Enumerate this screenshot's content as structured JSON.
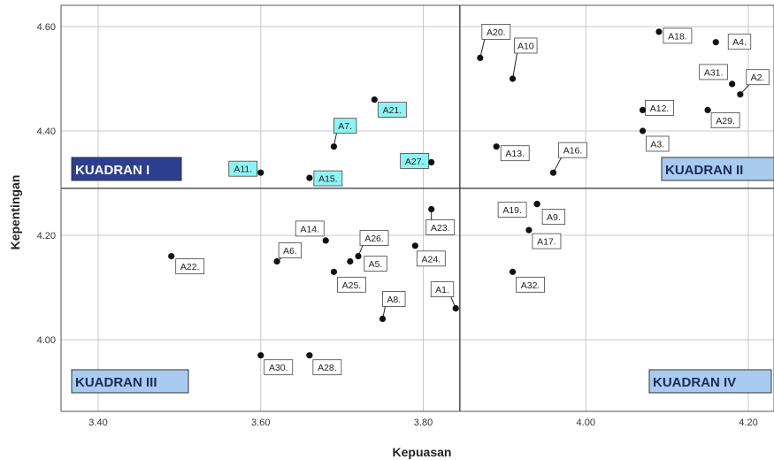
{
  "chart_data": {
    "type": "scatter",
    "xlabel": "Kepuasan",
    "ylabel": "Kepentingan",
    "xlim": [
      3.365,
      4.225
    ],
    "ylim": [
      3.863,
      4.646
    ],
    "xticks": [
      "3.40",
      "3.60",
      "3.80",
      "4.00",
      "4.20"
    ],
    "yticks": [
      "4.00",
      "4.20",
      "4.40",
      "4.60"
    ],
    "grid": true,
    "reference_lines": {
      "x": 3.845,
      "y": 4.29
    },
    "quadrants": [
      {
        "label": "KUADRAN I",
        "position": "top-left"
      },
      {
        "label": "KUADRAN II",
        "position": "top-right"
      },
      {
        "label": "KUADRAN III",
        "position": "bottom-left"
      },
      {
        "label": "KUADRAN IV",
        "position": "bottom-right"
      }
    ],
    "points": [
      {
        "label": "A1.",
        "x": 3.84,
        "y": 4.06
      },
      {
        "label": "A2.",
        "x": 4.19,
        "y": 4.47
      },
      {
        "label": "A3.",
        "x": 4.07,
        "y": 4.4
      },
      {
        "label": "A4.",
        "x": 4.16,
        "y": 4.57
      },
      {
        "label": "A5.",
        "x": 3.71,
        "y": 4.15
      },
      {
        "label": "A6.",
        "x": 3.62,
        "y": 4.15
      },
      {
        "label": "A7.",
        "x": 3.69,
        "y": 4.37,
        "highlight": true
      },
      {
        "label": "A8.",
        "x": 3.75,
        "y": 4.04
      },
      {
        "label": "A9.",
        "x": 3.94,
        "y": 4.26
      },
      {
        "label": "A10",
        "x": 3.91,
        "y": 4.5
      },
      {
        "label": "A11.",
        "x": 3.6,
        "y": 4.32,
        "highlight": true
      },
      {
        "label": "A12.",
        "x": 4.07,
        "y": 4.44
      },
      {
        "label": "A13.",
        "x": 3.89,
        "y": 4.37
      },
      {
        "label": "A14.",
        "x": 3.68,
        "y": 4.19
      },
      {
        "label": "A15.",
        "x": 3.66,
        "y": 4.31,
        "highlight": true
      },
      {
        "label": "A16.",
        "x": 3.96,
        "y": 4.32
      },
      {
        "label": "A17.",
        "x": 3.93,
        "y": 4.21
      },
      {
        "label": "A18.",
        "x": 4.09,
        "y": 4.59
      },
      {
        "label": "A19.",
        "x": 3.94,
        "y": 4.26
      },
      {
        "label": "A20.",
        "x": 3.87,
        "y": 4.54
      },
      {
        "label": "A21.",
        "x": 3.74,
        "y": 4.46,
        "highlight": true
      },
      {
        "label": "A22.",
        "x": 3.49,
        "y": 4.16
      },
      {
        "label": "A23.",
        "x": 3.81,
        "y": 4.25
      },
      {
        "label": "A24.",
        "x": 3.79,
        "y": 4.18
      },
      {
        "label": "A25.",
        "x": 3.69,
        "y": 4.13
      },
      {
        "label": "A26.",
        "x": 3.72,
        "y": 4.16
      },
      {
        "label": "A27.",
        "x": 3.81,
        "y": 4.34,
        "highlight": true
      },
      {
        "label": "A28.",
        "x": 3.66,
        "y": 3.97
      },
      {
        "label": "A29.",
        "x": 4.15,
        "y": 4.44
      },
      {
        "label": "A30.",
        "x": 3.6,
        "y": 3.97
      },
      {
        "label": "A31.",
        "x": 4.18,
        "y": 4.49
      },
      {
        "label": "A32.",
        "x": 3.91,
        "y": 4.13
      }
    ]
  },
  "colors": {
    "gridline": "#c8c8c8",
    "frame": "#555555",
    "refline": "#333333",
    "point": "#111111",
    "label_bg": "#ffffff",
    "label_highlight_bg": "#8ff3f3",
    "quad_dark_bg": "#2d3f8e",
    "quad_dark_text": "#ffffff",
    "quad_light_bg": "#a9ccee",
    "quad_light_text": "#1a2a5a"
  }
}
